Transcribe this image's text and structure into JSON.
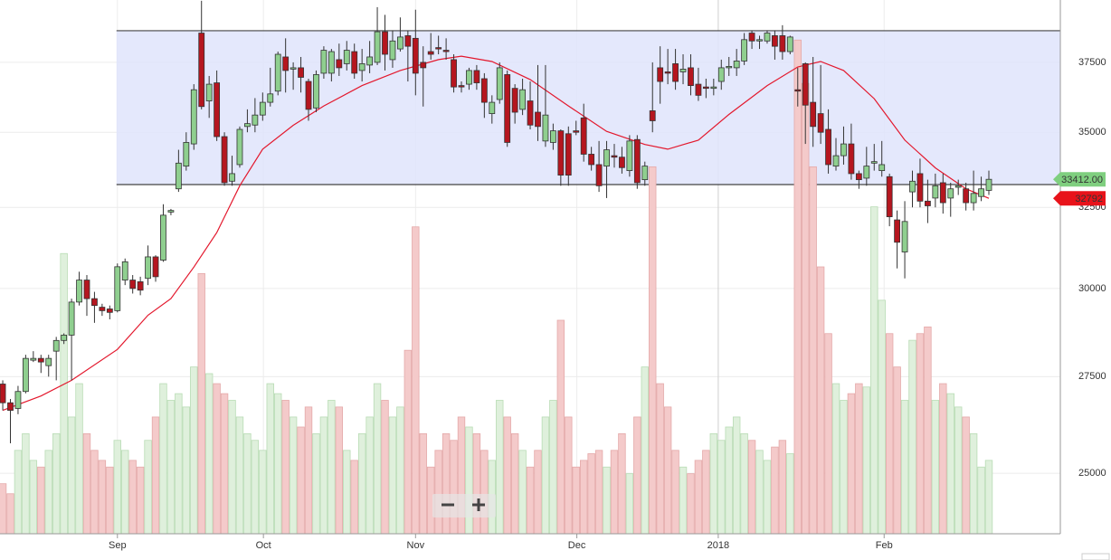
{
  "chart_data": {
    "type": "candlestick",
    "ylog": true,
    "ylim": [
      23550,
      39880
    ],
    "yticks": [
      25000,
      27500,
      30000,
      32500,
      35000,
      37500
    ],
    "xlim": [
      -0.36,
      138.35
    ],
    "xticks": [
      {
        "value": 15.0,
        "label": "Sep"
      },
      {
        "value": 34.1,
        "label": "Oct"
      },
      {
        "value": 54.0,
        "label": "Nov"
      },
      {
        "value": 75.1,
        "label": "Dec"
      },
      {
        "value": 93.6,
        "label": "2018"
      },
      {
        "value": 115.3,
        "label": "Feb"
      }
    ],
    "grid": true,
    "up_color": "#8fcf8f",
    "down_color": "#b5161f",
    "range_box": {
      "top": 38690,
      "bottom": 33240,
      "color": "#dfe4fb"
    },
    "open": [
      27300,
      26800,
      26650,
      27100,
      27950,
      28000,
      27800,
      28200,
      28500,
      28650,
      29600,
      30250,
      29700,
      29450,
      29400,
      29350,
      30250,
      30250,
      30200,
      30300,
      30950,
      30850,
      32350,
      33100,
      33850,
      34600,
      38600,
      36100,
      36750,
      34850,
      33350,
      33900,
      35200,
      35250,
      35600,
      36050,
      36450,
      37700,
      37250,
      37300,
      36800,
      35850,
      37100,
      37100,
      37600,
      37450,
      37900,
      37200,
      37400,
      37500,
      38650,
      37600,
      38000,
      38500,
      38400,
      37500,
      37900,
      38050,
      37950,
      37600,
      36650,
      36700,
      37200,
      36900,
      35650,
      36150,
      37050,
      36550,
      35800,
      36100,
      35700,
      34700,
      34650,
      35050,
      34950,
      35050,
      35500,
      34250,
      33900,
      33850,
      34200,
      34150,
      33700,
      34750,
      33400,
      35750,
      37300,
      37150,
      37450,
      37150,
      37300,
      36700,
      36600,
      36550,
      36800,
      37300,
      37300,
      37550,
      38600,
      38300,
      38300,
      38500,
      38500,
      37900,
      36500,
      37450,
      36050,
      35650,
      35100,
      33850,
      34200,
      34600,
      33600,
      33450,
      33950,
      33700,
      33500,
      32100,
      31100,
      33000,
      33600,
      32700,
      32800,
      33300,
      32800,
      33150,
      33100,
      32650,
      32850,
      33050
    ],
    "high": [
      27400,
      26900,
      27250,
      28100,
      28200,
      28100,
      28100,
      28600,
      28700,
      29700,
      30500,
      30400,
      29900,
      29550,
      29500,
      30750,
      30900,
      30400,
      30350,
      31300,
      31000,
      32600,
      32450,
      34400,
      35000,
      36700,
      39850,
      37000,
      37200,
      35000,
      34200,
      35200,
      35800,
      36200,
      36400,
      37300,
      37900,
      38400,
      37500,
      37700,
      36900,
      37200,
      38100,
      38000,
      38200,
      38300,
      38200,
      38000,
      38300,
      39600,
      39300,
      38700,
      39200,
      38700,
      39500,
      38100,
      38600,
      38500,
      38400,
      37800,
      36800,
      37300,
      37400,
      37100,
      36300,
      37500,
      37200,
      36700,
      36900,
      36800,
      37400,
      37400,
      35300,
      35100,
      35200,
      35400,
      36000,
      34500,
      34700,
      34700,
      34600,
      34500,
      34900,
      34900,
      34000,
      37500,
      38100,
      38000,
      38000,
      37800,
      37800,
      37300,
      36900,
      36900,
      37600,
      37700,
      38000,
      38600,
      38700,
      38500,
      38700,
      38700,
      38900,
      38500,
      37300,
      37500,
      37700,
      37400,
      35800,
      34800,
      35200,
      35300,
      33700,
      34500,
      34600,
      34700,
      33600,
      32400,
      32700,
      33700,
      34100,
      33400,
      33600,
      33600,
      33300,
      33400,
      33300,
      33700,
      33500,
      33700
    ],
    "low": [
      26600,
      25750,
      26500,
      27050,
      27900,
      27600,
      27500,
      27400,
      28400,
      27400,
      29500,
      29200,
      29000,
      29200,
      29100,
      29300,
      30100,
      29850,
      29800,
      30100,
      30200,
      30800,
      32250,
      33000,
      33700,
      34400,
      35800,
      35500,
      34700,
      33200,
      33200,
      33800,
      35000,
      35000,
      35400,
      35900,
      36300,
      36400,
      36500,
      36400,
      35400,
      35700,
      36900,
      36800,
      37000,
      37200,
      36900,
      36800,
      37100,
      37400,
      37200,
      37300,
      37900,
      36800,
      36300,
      35900,
      37600,
      37800,
      37600,
      36400,
      36400,
      36500,
      36500,
      35500,
      35300,
      36000,
      34500,
      35300,
      35600,
      35100,
      34700,
      34500,
      34400,
      33200,
      33200,
      34900,
      34000,
      33700,
      33000,
      32800,
      33800,
      33600,
      33500,
      33100,
      33200,
      35000,
      36000,
      36700,
      36500,
      36700,
      36300,
      36100,
      36200,
      36300,
      36500,
      37000,
      37000,
      37400,
      38000,
      38000,
      38200,
      37600,
      37600,
      37800,
      35900,
      34600,
      34500,
      34600,
      33600,
      33700,
      33900,
      33400,
      33100,
      33200,
      33700,
      33500,
      31900,
      30600,
      30300,
      32500,
      32500,
      32000,
      32500,
      32300,
      32200,
      32900,
      32400,
      32400,
      32700,
      32900
    ],
    "close": [
      26800,
      26600,
      27100,
      28000,
      28000,
      27900,
      28000,
      28500,
      28650,
      29600,
      30250,
      29700,
      29500,
      29350,
      29300,
      30650,
      30800,
      30000,
      29950,
      30950,
      30350,
      32250,
      32400,
      33950,
      34650,
      36500,
      35900,
      36700,
      34850,
      33300,
      33600,
      35100,
      35300,
      35600,
      36050,
      36350,
      37800,
      37200,
      37300,
      36950,
      35800,
      37050,
      37950,
      37900,
      37300,
      37950,
      37100,
      37450,
      37700,
      38650,
      37800,
      38300,
      38450,
      38100,
      37100,
      37300,
      37800,
      38000,
      37900,
      36600,
      36600,
      37200,
      36750,
      36050,
      36050,
      37300,
      34650,
      35700,
      36500,
      35250,
      35200,
      35600,
      35050,
      33550,
      33550,
      35000,
      34250,
      33900,
      33200,
      34400,
      34150,
      33800,
      34700,
      33300,
      33850,
      35400,
      36800,
      37100,
      36800,
      37250,
      36650,
      36300,
      36550,
      36600,
      37300,
      37350,
      37550,
      38350,
      38300,
      38350,
      38600,
      38100,
      37900,
      38450,
      36450,
      35950,
      35200,
      35000,
      33900,
      34200,
      34600,
      33600,
      33400,
      33850,
      34000,
      33900,
      32200,
      31400,
      32050,
      33350,
      32700,
      32550,
      33200,
      32650,
      33100,
      33200,
      32650,
      32950,
      33100,
      33412
    ],
    "volume": [
      15,
      12,
      25,
      30,
      22,
      20,
      25,
      30,
      84,
      35,
      45,
      30,
      25,
      22,
      20,
      28,
      25,
      22,
      20,
      28,
      35,
      45,
      40,
      42,
      38,
      50,
      78,
      48,
      45,
      42,
      40,
      35,
      30,
      28,
      25,
      45,
      42,
      40,
      35,
      32,
      38,
      30,
      35,
      40,
      38,
      25,
      22,
      30,
      35,
      45,
      40,
      35,
      38,
      55,
      92,
      30,
      20,
      25,
      30,
      28,
      35,
      32,
      30,
      25,
      22,
      40,
      35,
      30,
      25,
      20,
      25,
      35,
      40,
      64,
      35,
      20,
      22,
      24,
      25,
      20,
      25,
      30,
      18,
      35,
      50,
      110,
      45,
      38,
      25,
      20,
      18,
      22,
      25,
      30,
      28,
      32,
      35,
      30,
      28,
      25,
      22,
      26,
      28,
      24,
      148,
      135,
      110,
      80,
      60,
      45,
      40,
      42,
      45,
      44,
      98,
      70,
      60,
      50,
      40,
      58,
      60,
      62,
      40,
      45,
      42,
      38,
      35,
      30,
      20,
      22
    ],
    "volume_lim": [
      0,
      160
    ],
    "moving_average": {
      "color": "#e3182d",
      "x": [
        0,
        5,
        9,
        15,
        19,
        22,
        25,
        28,
        31,
        34,
        38,
        42,
        47,
        52,
        57,
        60,
        64,
        69,
        74,
        79,
        84,
        87,
        91,
        95,
        100,
        104,
        107,
        110,
        114,
        118,
        122,
        126,
        129
      ],
      "values": [
        26600,
        26980,
        27400,
        28250,
        29220,
        29700,
        30640,
        31700,
        33200,
        34420,
        35240,
        35920,
        36650,
        37200,
        37600,
        37730,
        37530,
        36870,
        35920,
        35030,
        34580,
        34420,
        34730,
        35620,
        36650,
        37330,
        37530,
        37200,
        36180,
        34730,
        33790,
        33100,
        32792
      ]
    },
    "price_tags": [
      {
        "value": 33412,
        "label": "33412.00",
        "color": "#7fcf7f"
      },
      {
        "value": 32792,
        "label": "32792",
        "color": "#e8131a"
      }
    ]
  }
}
